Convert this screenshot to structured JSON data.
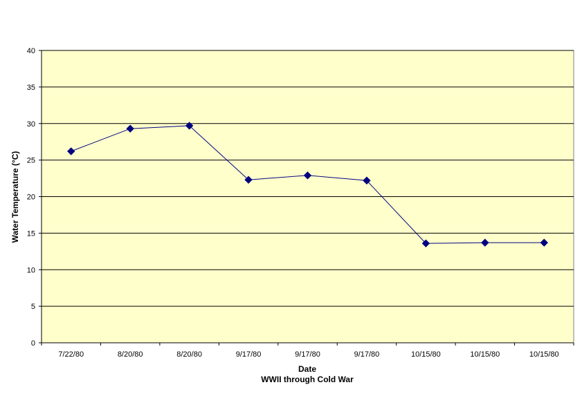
{
  "chart_data": {
    "type": "line",
    "categories": [
      "7/22/80",
      "8/20/80",
      "8/20/80",
      "9/17/80",
      "9/17/80",
      "9/17/80",
      "10/15/80",
      "10/15/80",
      "10/15/80"
    ],
    "values": [
      26.2,
      29.3,
      29.7,
      22.3,
      22.9,
      22.2,
      13.6,
      13.7,
      13.7
    ],
    "xlabel": "Date",
    "xlabel_sub": "WWII through Cold War",
    "ylabel": "Water Temperature (°C)",
    "ylim": [
      0,
      40
    ],
    "yticks": [
      0,
      5,
      10,
      15,
      20,
      25,
      30,
      35,
      40
    ],
    "grid": true,
    "marker": "diamond",
    "colors": {
      "plot_background": "#ffffcc",
      "line": "#000080",
      "marker": "#000080",
      "gridline": "#000000"
    }
  }
}
